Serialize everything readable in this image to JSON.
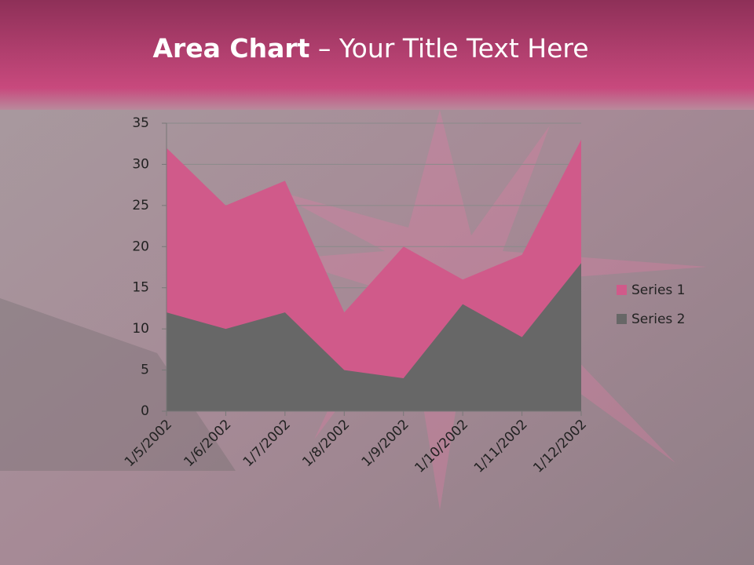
{
  "chart_data": {
    "type": "area",
    "title_bold": "Area Chart",
    "title_rest": "– Your Title Text Here",
    "categories": [
      "1/5/2002",
      "1/6/2002",
      "1/7/2002",
      "1/8/2002",
      "1/9/2002",
      "1/10/2002",
      "1/11/2002",
      "1/12/2002"
    ],
    "series": [
      {
        "name": "Series 1",
        "color": "#d05a8a",
        "values": [
          32,
          25,
          28,
          12,
          20,
          16,
          19,
          33
        ]
      },
      {
        "name": "Series 2",
        "color": "#676767",
        "values": [
          12,
          10,
          12,
          5,
          4,
          13,
          9,
          18
        ]
      }
    ],
    "ylim": [
      0,
      35
    ],
    "yticks": [
      0,
      5,
      10,
      15,
      20,
      25,
      30,
      35
    ],
    "grid": true,
    "legend": "right"
  }
}
